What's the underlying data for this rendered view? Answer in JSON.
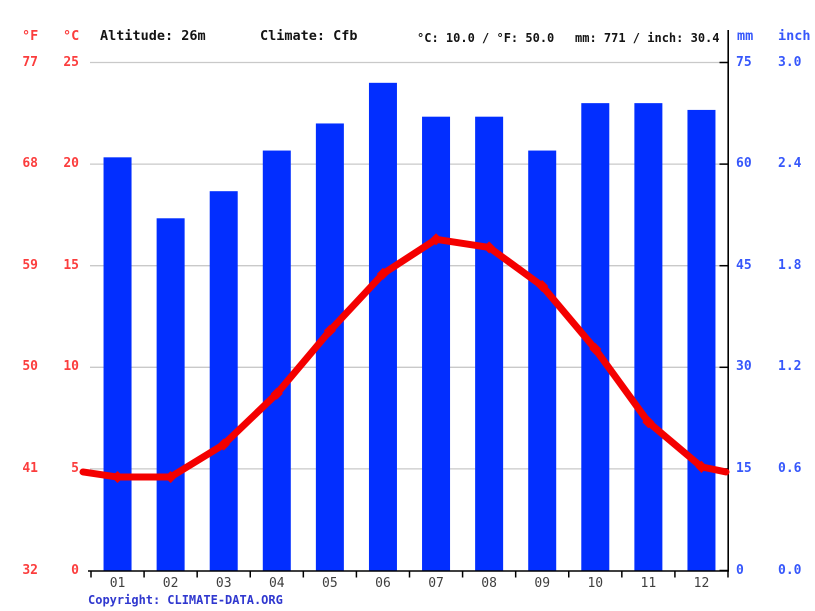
{
  "header": {
    "f_label": "°F",
    "c_label": "°C",
    "altitude": "Altitude: 26m",
    "climate": "Climate: Cfb",
    "temp_summary": "°C: 10.0 / °F: 50.0",
    "precip_summary": "mm: 771 / inch: 30.4",
    "mm_label": "mm",
    "inch_label": "inch"
  },
  "footer": {
    "copyright_label": "Copyright:",
    "link": "CLIMATE-DATA.ORG"
  },
  "colors": {
    "bar_blue": "#022eff",
    "line_red": "#f40000",
    "left_axis_text": "#fb3d3d",
    "right_axis_text": "#3657fb",
    "month_text": "#3f3f3f",
    "footer_blue": "#3038cf",
    "gridline": "#c9c9c9",
    "axis_black": "#000000"
  },
  "chart_data": {
    "type": "bar",
    "subtype": "climograph: precipitation bars + temperature line",
    "categories": [
      "01",
      "02",
      "03",
      "04",
      "05",
      "06",
      "07",
      "08",
      "09",
      "10",
      "11",
      "12"
    ],
    "series": [
      {
        "name": "precipitation",
        "type": "bar",
        "unit": "mm",
        "values": [
          61,
          52,
          56,
          62,
          66,
          72,
          67,
          67,
          62,
          69,
          69,
          68
        ]
      },
      {
        "name": "average temperature",
        "type": "line",
        "unit": "°C",
        "values": [
          4.6,
          4.6,
          6.2,
          8.7,
          11.8,
          14.6,
          16.3,
          15.9,
          14.0,
          10.9,
          7.3,
          5.1
        ]
      }
    ],
    "left_axis": {
      "labels_f": [
        "77",
        "68",
        "59",
        "50",
        "41",
        "32"
      ],
      "labels_c": [
        "25",
        "20",
        "15",
        "10",
        "5",
        "0"
      ]
    },
    "right_axis": {
      "labels_mm": [
        "75",
        "60",
        "45",
        "30",
        "15",
        "0"
      ],
      "labels_inch": [
        "3.0",
        "2.4",
        "1.8",
        "1.2",
        "0.6",
        "0.0"
      ]
    },
    "ylim_c": [
      0,
      25
    ],
    "ylim_mm": [
      0,
      75
    ],
    "grid": true,
    "legend": "none",
    "annual_mean_c": 10.0,
    "annual_precip_mm": 771
  }
}
